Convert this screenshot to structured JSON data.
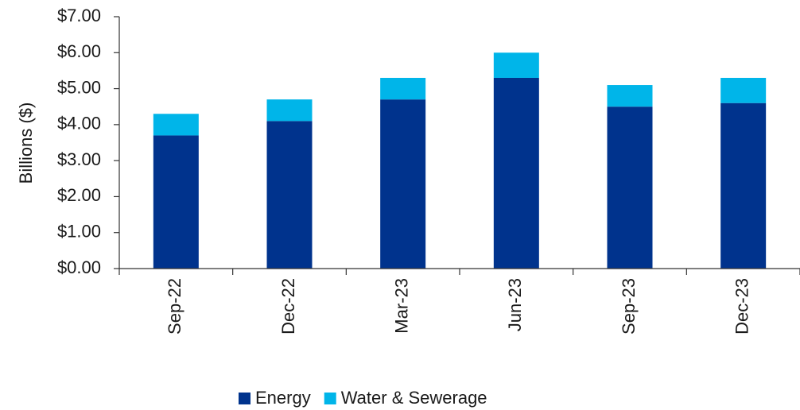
{
  "chart_data": {
    "type": "stacked-bar",
    "y_axis_label": "Billions ($)",
    "categories": [
      "Sep-22",
      "Dec-22",
      "Mar-23",
      "Jun-23",
      "Sep-23",
      "Dec-23"
    ],
    "series": [
      {
        "name": "Energy",
        "color": "#00338d",
        "values": [
          3.7,
          4.1,
          4.7,
          5.3,
          4.5,
          4.6
        ]
      },
      {
        "name": "Water & Sewerage",
        "color": "#00b5e9",
        "values": [
          0.6,
          0.6,
          0.6,
          0.7,
          0.6,
          0.7
        ]
      }
    ],
    "ylim": [
      0,
      7
    ],
    "yticks": [
      {
        "value": 0,
        "label": "$0.00"
      },
      {
        "value": 1,
        "label": "$1.00"
      },
      {
        "value": 2,
        "label": "$2.00"
      },
      {
        "value": 3,
        "label": "$3.00"
      },
      {
        "value": 4,
        "label": "$4.00"
      },
      {
        "value": 5,
        "label": "$5.00"
      },
      {
        "value": 6,
        "label": "$6.00"
      },
      {
        "value": 7,
        "label": "$7.00"
      }
    ],
    "legend": "bottom"
  }
}
